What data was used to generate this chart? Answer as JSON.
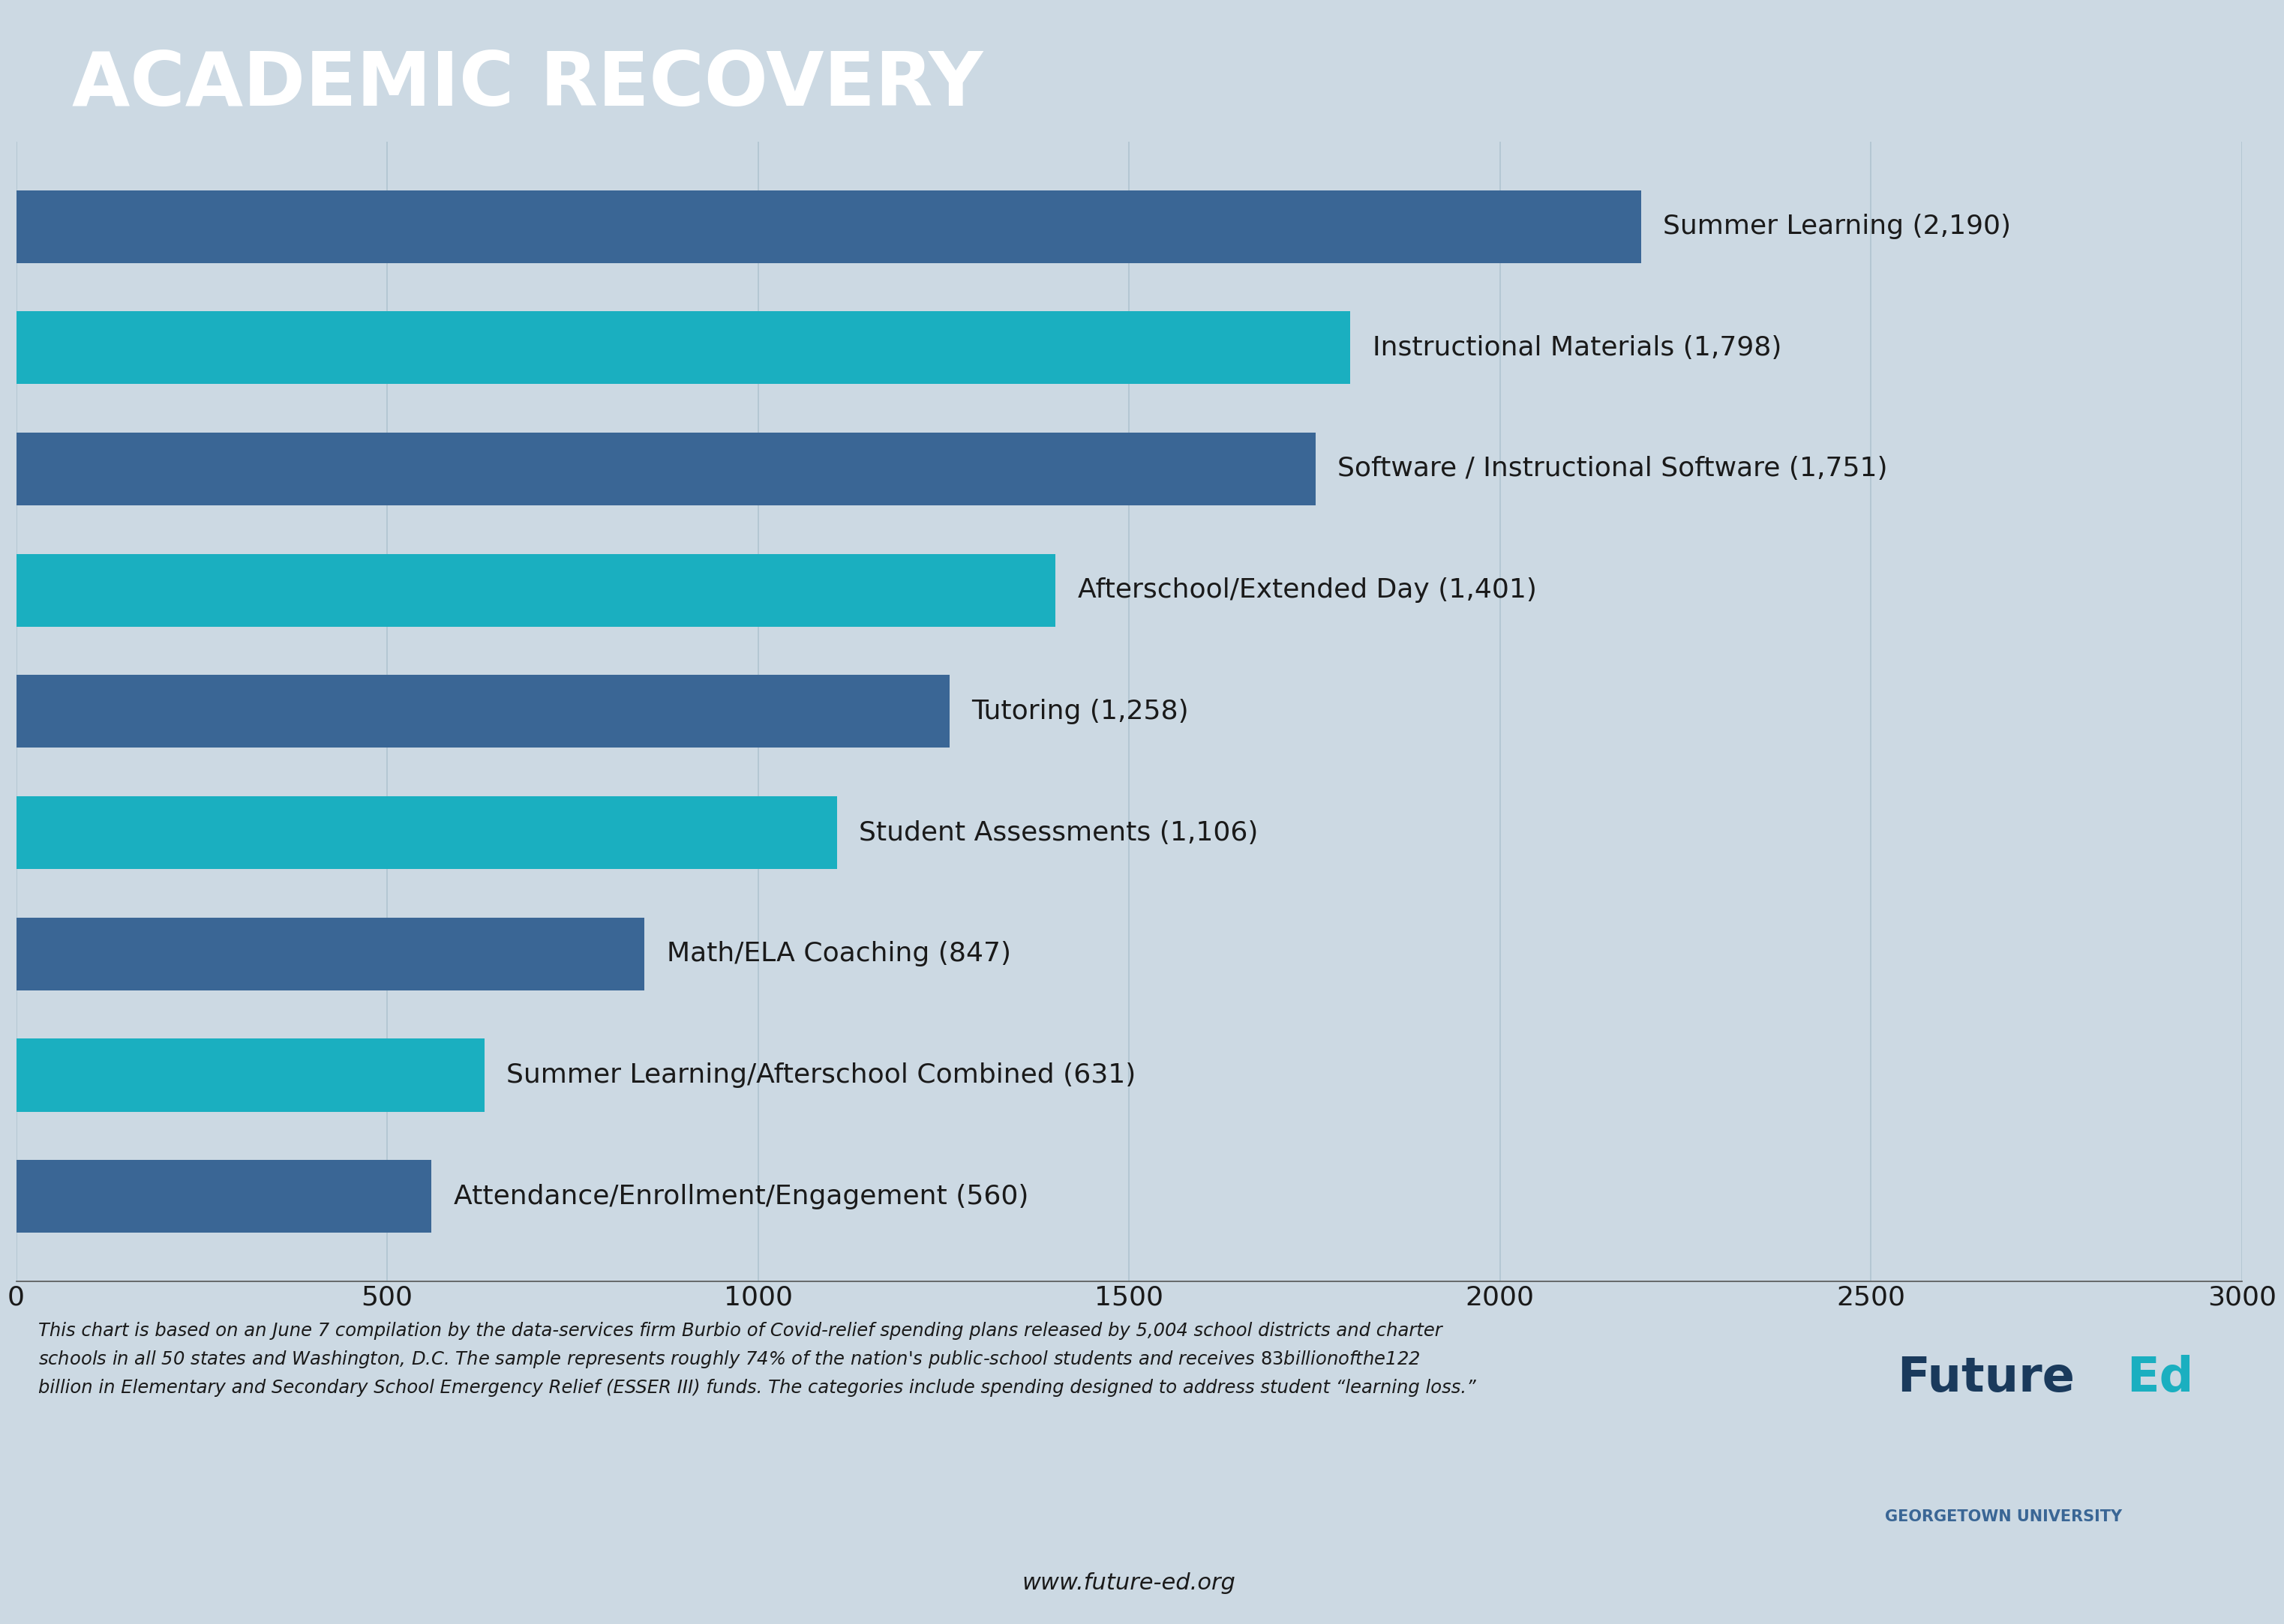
{
  "title": "ACADEMIC RECOVERY",
  "title_bg_color": "#0d2a4a",
  "title_text_color": "#ffffff",
  "chart_bg_color": "#ccd9e3",
  "categories": [
    "Summer Learning",
    "Instructional Materials",
    "Software / Instructional Software",
    "Afterschool/Extended Day",
    "Tutoring",
    "Student Assessments",
    "Math/ELA Coaching",
    "Summer Learning/Afterschool Combined",
    "Attendance/Enrollment/Engagement"
  ],
  "values": [
    2190,
    1798,
    1751,
    1401,
    1258,
    1106,
    847,
    631,
    560
  ],
  "bar_colors": [
    "#3a6695",
    "#1aafc0",
    "#3a6695",
    "#1aafc0",
    "#3a6695",
    "#1aafc0",
    "#3a6695",
    "#1aafc0",
    "#3a6695"
  ],
  "label_values": [
    "2,190",
    "1,798",
    "1,751",
    "1,401",
    "1,258",
    "1,106",
    "847",
    "631",
    "560"
  ],
  "xlim": [
    0,
    3000
  ],
  "xticks": [
    0,
    500,
    1000,
    1500,
    2000,
    2500,
    3000
  ],
  "footnote_line1": "This chart is based on an June 7 compilation by the data-services firm Burbio of Covid-relief spending plans released by 5,004 school districts and charter",
  "footnote_line2": "schools in all 50 states and Washington, D.C. The sample represents roughly 74% of the nation's public-school students and receives $83 billion of the $122",
  "footnote_line3": "billion in Elementary and Secondary School Emergency Relief (ESSER III) funds. The categories include spending designed to address student “learning loss.”",
  "url": "www.future-ed.org",
  "logo_future_color": "#1a3a5c",
  "logo_ed_color": "#1aafc0",
  "logo_subtitle": "GEORGETOWN UNIVERSITY",
  "logo_subtitle_color": "#3a6695",
  "label_text_color": "#1a1a1a",
  "tick_label_color": "#1a1a1a",
  "grid_color": "#b0c4d0",
  "bar_height": 0.6
}
